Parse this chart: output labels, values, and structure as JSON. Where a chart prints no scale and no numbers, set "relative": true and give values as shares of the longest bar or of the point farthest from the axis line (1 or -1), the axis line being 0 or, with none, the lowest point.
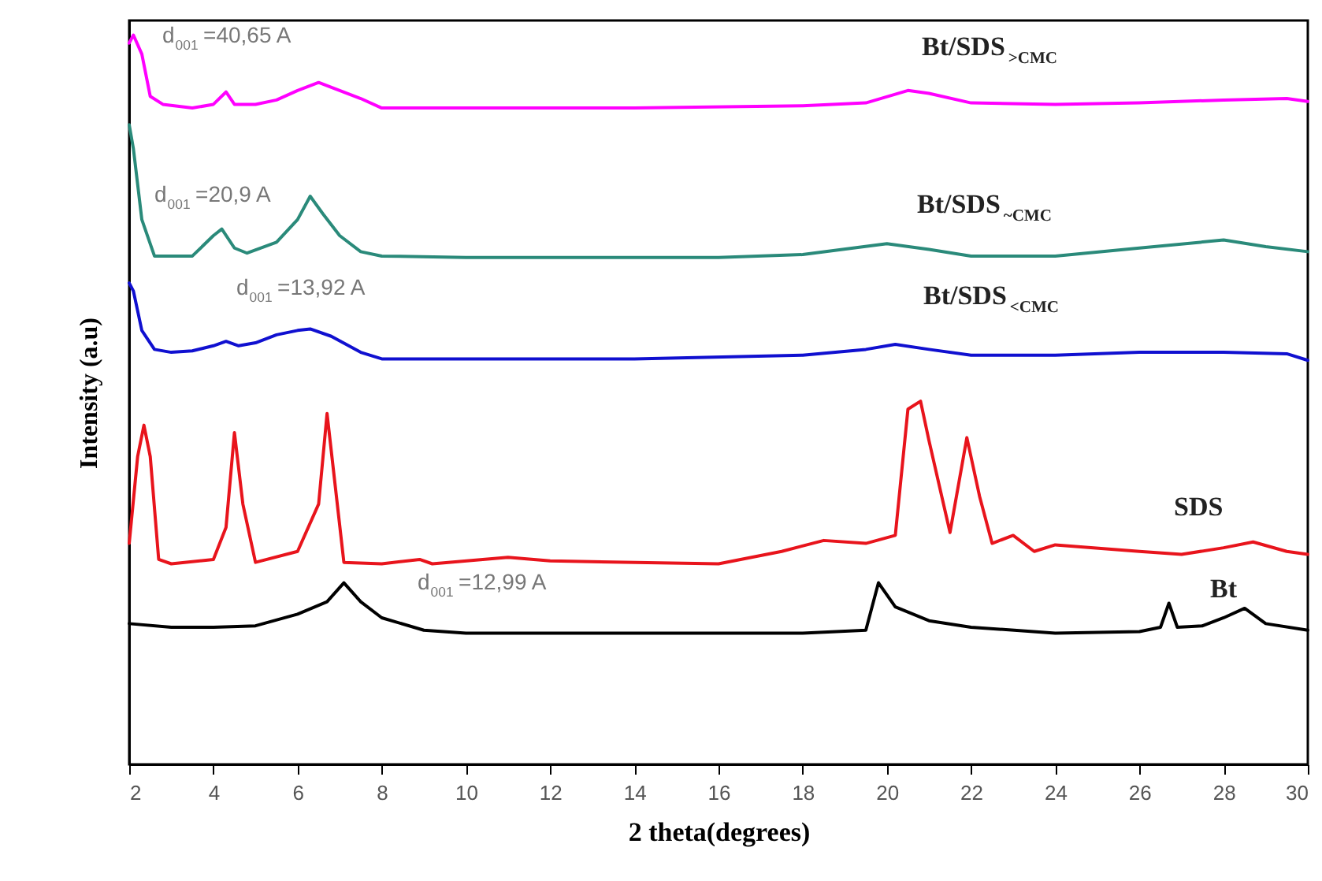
{
  "chart_data": {
    "type": "line",
    "relative": true,
    "xlabel": "2 theta(degrees)",
    "ylabel": "Intensity (a.u)",
    "xlim": [
      2,
      30
    ],
    "xticks": [
      2,
      4,
      6,
      8,
      10,
      12,
      14,
      16,
      18,
      20,
      22,
      24,
      26,
      28,
      30
    ],
    "grid": false,
    "line_style": "solid",
    "marker": "none",
    "annotations": [
      "d$_{001}$=40,65 A",
      "d$_{001}$=20,9 A",
      "d$_{001}$=13,92 A",
      "d$_{001}$=12,99 A"
    ],
    "series": [
      {
        "name": "Bt",
        "color": "#000000",
        "x": [
          2,
          3,
          4,
          5,
          6,
          6.7,
          7.1,
          7.5,
          8,
          9,
          10,
          12,
          14,
          18,
          19.5,
          19.8,
          20.2,
          21,
          22,
          24,
          26,
          26.5,
          26.7,
          26.9,
          27.5,
          28,
          28.5,
          29,
          30
        ],
        "values": [
          0.193,
          0.188,
          0.188,
          0.19,
          0.206,
          0.223,
          0.249,
          0.223,
          0.201,
          0.184,
          0.18,
          0.18,
          0.18,
          0.18,
          0.184,
          0.249,
          0.216,
          0.197,
          0.188,
          0.18,
          0.182,
          0.188,
          0.221,
          0.188,
          0.19,
          0.201,
          0.214,
          0.193,
          0.184
        ]
      },
      {
        "name": "SDS",
        "color": "#e8141c",
        "x": [
          2,
          2.2,
          2.35,
          2.5,
          2.7,
          3,
          4,
          4.3,
          4.5,
          4.7,
          5,
          6,
          6.5,
          6.7,
          6.9,
          7.1,
          8,
          8.9,
          9.2,
          11,
          12,
          16,
          17.5,
          18.5,
          19.5,
          20.2,
          20.5,
          20.8,
          21,
          21.5,
          21.9,
          22.2,
          22.5,
          23,
          23.5,
          24,
          26,
          27,
          28,
          28.7,
          29.5,
          30
        ],
        "values": [
          0.303,
          0.422,
          0.465,
          0.422,
          0.281,
          0.275,
          0.281,
          0.325,
          0.455,
          0.357,
          0.277,
          0.292,
          0.357,
          0.481,
          0.379,
          0.277,
          0.275,
          0.281,
          0.275,
          0.284,
          0.279,
          0.275,
          0.292,
          0.307,
          0.303,
          0.314,
          0.487,
          0.498,
          0.444,
          0.318,
          0.448,
          0.368,
          0.303,
          0.314,
          0.292,
          0.301,
          0.292,
          0.288,
          0.297,
          0.305,
          0.292,
          0.288
        ]
      },
      {
        "name": "Bt/SDS$_{<CMC}$",
        "color": "#1010d0",
        "x": [
          2,
          2.1,
          2.3,
          2.6,
          3,
          3.5,
          4,
          4.3,
          4.6,
          5,
          5.5,
          6,
          6.3,
          6.8,
          7.5,
          8,
          10,
          14,
          18,
          19.5,
          20.2,
          21,
          22,
          24,
          26,
          28,
          29.5,
          30
        ],
        "values": [
          0.66,
          0.649,
          0.595,
          0.569,
          0.565,
          0.567,
          0.574,
          0.58,
          0.574,
          0.578,
          0.589,
          0.595,
          0.597,
          0.587,
          0.565,
          0.556,
          0.556,
          0.556,
          0.561,
          0.569,
          0.576,
          0.569,
          0.561,
          0.561,
          0.565,
          0.565,
          0.563,
          0.554
        ]
      },
      {
        "name": "Bt/SDS$_{~CMC}$",
        "color": "#2a8a7a",
        "x": [
          2,
          2.1,
          2.3,
          2.6,
          3,
          3.5,
          4,
          4.2,
          4.5,
          4.8,
          5.5,
          6,
          6.3,
          6.6,
          7,
          7.5,
          8,
          10,
          14,
          16,
          18,
          20,
          21,
          22,
          24,
          26,
          28,
          29,
          30
        ],
        "values": [
          0.877,
          0.844,
          0.747,
          0.697,
          0.697,
          0.697,
          0.725,
          0.734,
          0.708,
          0.701,
          0.716,
          0.747,
          0.779,
          0.755,
          0.725,
          0.703,
          0.697,
          0.695,
          0.695,
          0.695,
          0.699,
          0.714,
          0.706,
          0.697,
          0.697,
          0.708,
          0.719,
          0.71,
          0.703
        ]
      },
      {
        "name": "Bt/SDS$_{>CMC}$",
        "color": "#ff00ff",
        "x": [
          2,
          2.1,
          2.3,
          2.5,
          2.8,
          3.5,
          4,
          4.3,
          4.5,
          5,
          5.5,
          6,
          6.5,
          7,
          7.5,
          8,
          10,
          14,
          18,
          19.5,
          20.5,
          21,
          22,
          24,
          26,
          28,
          29.5,
          30
        ],
        "values": [
          0.989,
          1.0,
          0.974,
          0.916,
          0.905,
          0.9,
          0.905,
          0.922,
          0.905,
          0.905,
          0.911,
          0.924,
          0.935,
          0.924,
          0.913,
          0.9,
          0.9,
          0.9,
          0.903,
          0.907,
          0.924,
          0.92,
          0.907,
          0.905,
          0.907,
          0.911,
          0.913,
          0.909
        ]
      }
    ]
  }
}
